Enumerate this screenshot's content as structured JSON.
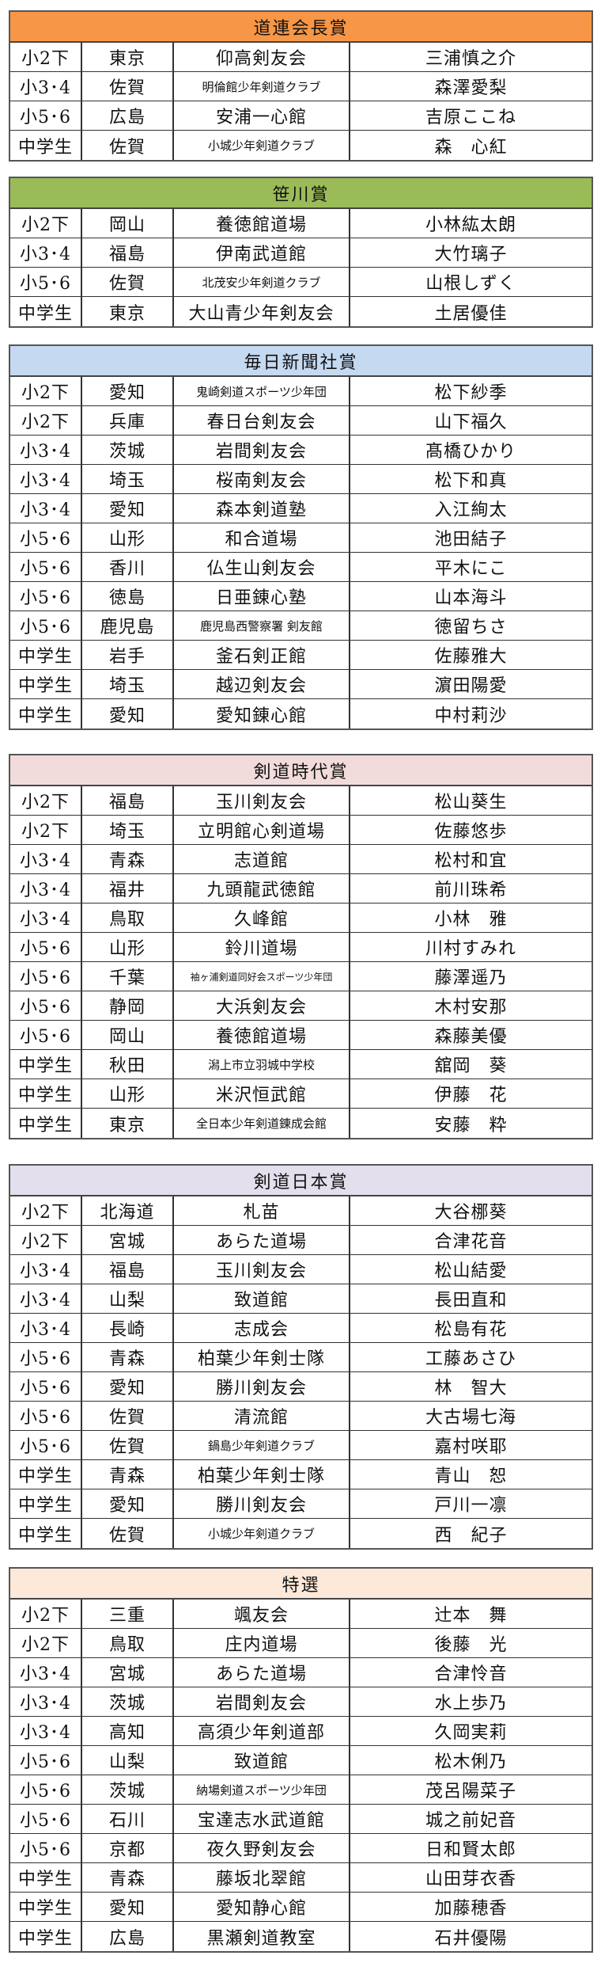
{
  "awards": [
    {
      "title": "道連会長賞",
      "color": "#f79646",
      "rows": [
        [
          "小2下",
          "東京",
          "仰高剣友会",
          "三浦慎之介"
        ],
        [
          "小3･4",
          "佐賀",
          "明倫館少年剣道クラブ",
          "森澤愛梨"
        ],
        [
          "小5･6",
          "広島",
          "安浦一心館",
          "吉原ここね"
        ],
        [
          "中学生",
          "佐賀",
          "小城少年剣道クラブ",
          "森　心紅"
        ]
      ]
    },
    {
      "title": "笹川賞",
      "color": "#9bbb59",
      "rows": [
        [
          "小2下",
          "岡山",
          "養徳館道場",
          "小林紘太朗"
        ],
        [
          "小3･4",
          "福島",
          "伊南武道館",
          "大竹璃子"
        ],
        [
          "小5･6",
          "佐賀",
          "北茂安少年剣道クラブ",
          "山根しずく"
        ],
        [
          "中学生",
          "東京",
          "大山青少年剣友会",
          "土居優佳"
        ]
      ]
    },
    {
      "title": "毎日新聞社賞",
      "color": "#c5d9f1",
      "rows": [
        [
          "小2下",
          "愛知",
          "鬼崎剣道スポーツ少年団",
          "松下紗季"
        ],
        [
          "小2下",
          "兵庫",
          "春日台剣友会",
          "山下福久"
        ],
        [
          "小3･4",
          "茨城",
          "岩間剣友会",
          "髙橋ひかり"
        ],
        [
          "小3･4",
          "埼玉",
          "桜南剣友会",
          "松下和真"
        ],
        [
          "小3･4",
          "愛知",
          "森本剣道塾",
          "入江絢太"
        ],
        [
          "小5･6",
          "山形",
          "和合道場",
          "池田結子"
        ],
        [
          "小5･6",
          "香川",
          "仏生山剣友会",
          "平木にこ"
        ],
        [
          "小5･6",
          "徳島",
          "日亜錬心塾",
          "山本海斗"
        ],
        [
          "小5･6",
          "鹿児島",
          "鹿児島西警察署 剣友館",
          "徳留ちさ"
        ],
        [
          "中学生",
          "岩手",
          "釜石剣正館",
          "佐藤雅大"
        ],
        [
          "中学生",
          "埼玉",
          "越辺剣友会",
          "濵田陽愛"
        ],
        [
          "中学生",
          "愛知",
          "愛知錬心館",
          "中村莉沙"
        ]
      ]
    },
    {
      "title": "剣道時代賞",
      "color": "#f2dcdb",
      "rows": [
        [
          "小2下",
          "福島",
          "玉川剣友会",
          "松山葵生"
        ],
        [
          "小2下",
          "埼玉",
          "立明館心剣道場",
          "佐藤悠歩"
        ],
        [
          "小3･4",
          "青森",
          "志道館",
          "松村和宜"
        ],
        [
          "小3･4",
          "福井",
          "九頭龍武徳館",
          "前川珠希"
        ],
        [
          "小3･4",
          "鳥取",
          "久峰館",
          "小林　雅"
        ],
        [
          "小5･6",
          "山形",
          "鈴川道場",
          "川村すみれ"
        ],
        [
          "小5･6",
          "千葉",
          "袖ヶ浦剣道同好会スポーツ少年団",
          "藤澤遥乃"
        ],
        [
          "小5･6",
          "静岡",
          "大浜剣友会",
          "木村安那"
        ],
        [
          "小5･6",
          "岡山",
          "養徳館道場",
          "森藤美優"
        ],
        [
          "中学生",
          "秋田",
          "潟上市立羽城中学校",
          "舘岡　葵"
        ],
        [
          "中学生",
          "山形",
          "米沢恒武館",
          "伊藤　花"
        ],
        [
          "中学生",
          "東京",
          "全日本少年剣道錬成会館",
          "安藤　粋"
        ]
      ]
    },
    {
      "title": "剣道日本賞",
      "color": "#e4dfec",
      "rows": [
        [
          "小2下",
          "北海道",
          "札苗",
          "大谷梛葵"
        ],
        [
          "小2下",
          "宮城",
          "あらた道場",
          "合津花音"
        ],
        [
          "小3･4",
          "福島",
          "玉川剣友会",
          "松山結愛"
        ],
        [
          "小3･4",
          "山梨",
          "致道館",
          "長田直和"
        ],
        [
          "小3･4",
          "長崎",
          "志成会",
          "松島有花"
        ],
        [
          "小5･6",
          "青森",
          "柏葉少年剣士隊",
          "工藤あさひ"
        ],
        [
          "小5･6",
          "愛知",
          "勝川剣友会",
          "林　智大"
        ],
        [
          "小5･6",
          "佐賀",
          "清流館",
          "大古場七海"
        ],
        [
          "小5･6",
          "佐賀",
          "鍋島少年剣道クラブ",
          "嘉村咲耶"
        ],
        [
          "中学生",
          "青森",
          "柏葉少年剣士隊",
          "青山　恕"
        ],
        [
          "中学生",
          "愛知",
          "勝川剣友会",
          "戸川一凛"
        ],
        [
          "中学生",
          "佐賀",
          "小城少年剣道クラブ",
          "西　紀子"
        ]
      ]
    },
    {
      "title": "特選",
      "color": "#fde9d9",
      "rows": [
        [
          "小2下",
          "三重",
          "颯友会",
          "辻本　舞"
        ],
        [
          "小2下",
          "鳥取",
          "庄内道場",
          "後藤　光"
        ],
        [
          "小3･4",
          "宮城",
          "あらた道場",
          "合津怜音"
        ],
        [
          "小3･4",
          "茨城",
          "岩間剣友会",
          "水上歩乃"
        ],
        [
          "小3･4",
          "高知",
          "高須少年剣道部",
          "久岡実莉"
        ],
        [
          "小5･6",
          "山梨",
          "致道館",
          "松木俐乃"
        ],
        [
          "小5･6",
          "茨城",
          "納場剣道スポーツ少年団",
          "茂呂陽菜子"
        ],
        [
          "小5･6",
          "石川",
          "宝達志水武道館",
          "城之前妃音"
        ],
        [
          "小5･6",
          "京都",
          "夜久野剣友会",
          "日和賢太郎"
        ],
        [
          "中学生",
          "青森",
          "藤坂北翠館",
          "山田芽衣香"
        ],
        [
          "中学生",
          "愛知",
          "愛知静心館",
          "加藤穂香"
        ],
        [
          "中学生",
          "広島",
          "黒瀬剣道教室",
          "石井優陽"
        ]
      ]
    }
  ]
}
